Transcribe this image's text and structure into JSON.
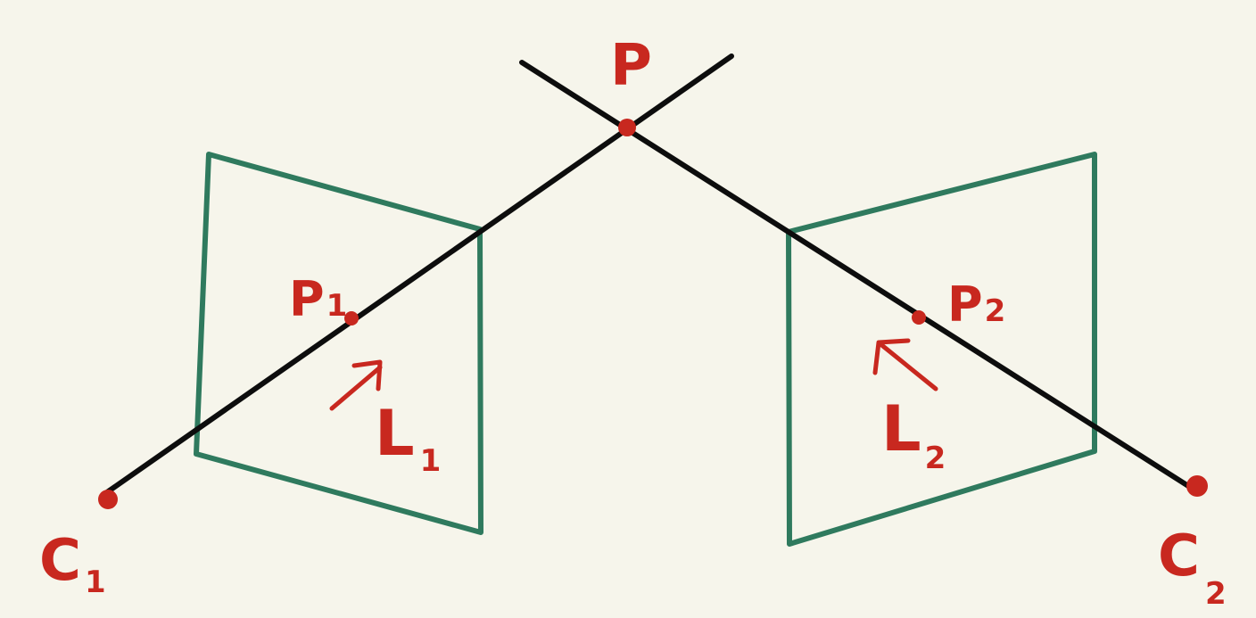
{
  "colors": {
    "background": "#f6f5eb",
    "ray": "#0d0d0d",
    "image_plane": "#2f7a5e",
    "annotation": "#c8281f"
  },
  "labels": {
    "point_world": {
      "main": "P",
      "sub": ""
    },
    "camera_1": {
      "main": "C",
      "sub": "1"
    },
    "camera_2": {
      "main": "C",
      "sub": "2"
    },
    "image_point_1": {
      "main": "P",
      "sub": "1"
    },
    "image_point_2": {
      "main": "P",
      "sub": "2"
    },
    "ray_1": {
      "main": "L",
      "sub": "1"
    },
    "ray_2": {
      "main": "L",
      "sub": "2"
    }
  },
  "icons": {
    "ray_1_direction": "arrow-up-right-icon",
    "ray_2_direction": "arrow-up-left-icon"
  }
}
